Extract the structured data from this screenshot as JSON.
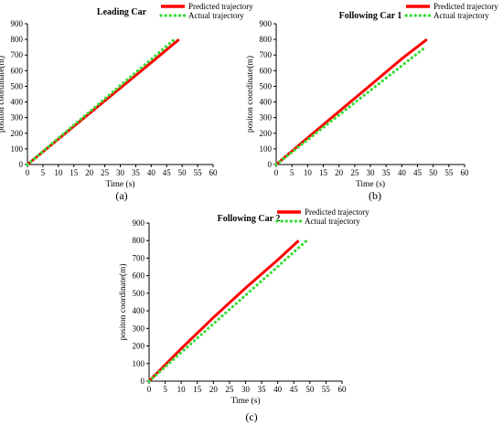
{
  "chart_data": [
    {
      "type": "line",
      "panel_label": "(a)",
      "title": "Leading Car",
      "xlabel": "Time (s)",
      "ylabel": "positon coordinate(m)",
      "xlim": [
        0,
        60
      ],
      "ylim": [
        0,
        900
      ],
      "xticks": [
        0,
        5,
        10,
        15,
        20,
        25,
        30,
        35,
        40,
        45,
        50,
        55,
        60
      ],
      "yticks": [
        0,
        100,
        200,
        300,
        400,
        500,
        600,
        700,
        800,
        900
      ],
      "legend_position": "top-right",
      "series": [
        {
          "name": "Predicted trajectory",
          "style": "solid",
          "color": "#ff0000",
          "x": [
            0,
            10,
            20,
            30,
            40,
            49
          ],
          "y": [
            0,
            163,
            326,
            489,
            652,
            800
          ]
        },
        {
          "name": "Actual trajectory",
          "style": "dotted",
          "color": "#33dd33",
          "x": [
            0,
            10,
            20,
            30,
            40,
            47.5
          ],
          "y": [
            0,
            168,
            336,
            505,
            673,
            800
          ]
        }
      ]
    },
    {
      "type": "line",
      "panel_label": "(b)",
      "title": "Following Car 1",
      "xlabel": "Time (s)",
      "ylabel": "positon coordinate(m)",
      "xlim": [
        0,
        60
      ],
      "ylim": [
        0,
        900
      ],
      "xticks": [
        0,
        5,
        10,
        15,
        20,
        25,
        30,
        35,
        40,
        45,
        50,
        55,
        60
      ],
      "yticks": [
        0,
        100,
        200,
        300,
        400,
        500,
        600,
        700,
        800,
        900
      ],
      "legend_position": "top-right",
      "series": [
        {
          "name": "Predicted trajectory",
          "style": "solid",
          "color": "#ff0000",
          "x": [
            0,
            10,
            20,
            30,
            40,
            48
          ],
          "y": [
            0,
            170,
            339,
            507,
            676,
            800
          ]
        },
        {
          "name": "Actual trajectory",
          "style": "dotted",
          "color": "#33dd33",
          "x": [
            0,
            10,
            20,
            30,
            40,
            47.5
          ],
          "y": [
            0,
            158,
            316,
            474,
            632,
            750
          ]
        }
      ]
    },
    {
      "type": "line",
      "panel_label": "(c)",
      "title": "Following Car 2",
      "xlabel": "Time (s)",
      "ylabel": "positon coordinate(m)",
      "xlim": [
        0,
        60
      ],
      "ylim": [
        0,
        900
      ],
      "xticks": [
        0,
        5,
        10,
        15,
        20,
        25,
        30,
        35,
        40,
        45,
        50,
        55,
        60
      ],
      "yticks": [
        0,
        100,
        200,
        300,
        400,
        500,
        600,
        700,
        800,
        900
      ],
      "legend_position": "top-right",
      "series": [
        {
          "name": "Predicted trajectory",
          "style": "solid",
          "color": "#ff0000",
          "x": [
            0,
            10,
            20,
            30,
            40,
            46.5
          ],
          "y": [
            0,
            185,
            362,
            530,
            690,
            800
          ]
        },
        {
          "name": "Actual trajectory",
          "style": "dotted",
          "color": "#33dd33",
          "x": [
            0,
            10,
            20,
            30,
            40,
            49
          ],
          "y": [
            0,
            163,
            326,
            489,
            652,
            800
          ]
        }
      ]
    }
  ]
}
